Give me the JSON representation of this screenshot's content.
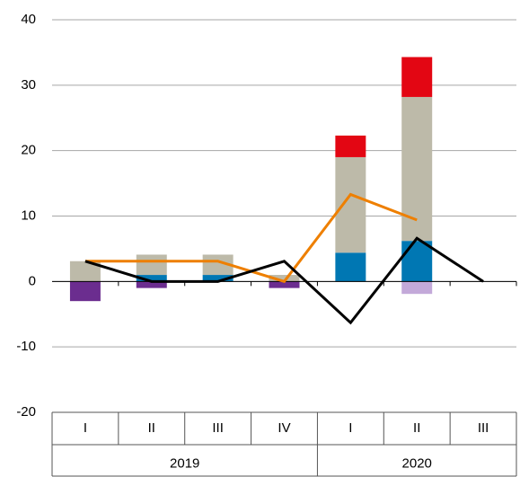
{
  "chart_data": {
    "type": "bar",
    "categories": [
      "I",
      "II",
      "III",
      "IV",
      "I",
      "II",
      "III"
    ],
    "x_groups": [
      "2019",
      "2019",
      "2019",
      "2019",
      "2020",
      "2020",
      "2020"
    ],
    "ylim": [
      -20,
      40
    ],
    "yticks": [
      -20,
      -10,
      0,
      10,
      20,
      30,
      40
    ],
    "grid": true,
    "stacked": true,
    "series": [
      {
        "type": "bar",
        "color": "#0077b3",
        "values": [
          0,
          1,
          1,
          0,
          4.4,
          6.2,
          0
        ]
      },
      {
        "type": "bar",
        "color": "#bdbaa9",
        "values": [
          3.1,
          3.1,
          3.1,
          1,
          14.6,
          22,
          0
        ]
      },
      {
        "type": "bar",
        "color": "#e30613",
        "values": [
          0,
          0,
          0,
          0,
          3.3,
          6.1,
          0
        ]
      },
      {
        "type": "bar",
        "color": "#6b2d8f",
        "values": [
          -3,
          -1,
          0,
          -1,
          0,
          0,
          0
        ]
      },
      {
        "type": "bar",
        "color": "#c3a9d9",
        "values": [
          0,
          0,
          0,
          0,
          0,
          -1.9,
          0
        ]
      },
      {
        "type": "line",
        "color": "#ee7f00",
        "values": [
          3.1,
          3.1,
          3.1,
          0,
          13.3,
          9.4,
          null
        ]
      },
      {
        "type": "line",
        "color": "#000000",
        "values": [
          3.1,
          0,
          0,
          3.1,
          -6.3,
          6.6,
          0
        ]
      }
    ]
  }
}
